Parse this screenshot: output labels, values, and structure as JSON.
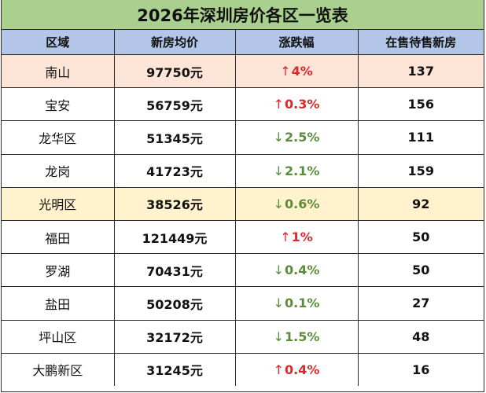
{
  "title": "2026年深圳房价各区一览表",
  "colors": {
    "title_bg": "#a9d08e",
    "header_bg": "#b4c6e7",
    "highlight_peach": "#fce4d6",
    "highlight_yellow": "#fff2cc",
    "up": "#e0262b",
    "down": "#5b8c3a"
  },
  "columns": [
    "区域",
    "新房均价",
    "涨跌幅",
    "在售待售新房"
  ],
  "rows": [
    {
      "district": "南山",
      "price": "97750元",
      "direction": "up",
      "arrow": "↑",
      "change": "4%",
      "count": "137",
      "highlight": "peach"
    },
    {
      "district": "宝安",
      "price": "56759元",
      "direction": "up",
      "arrow": "↑",
      "change": "0.3%",
      "count": "156",
      "highlight": ""
    },
    {
      "district": "龙华区",
      "price": "51345元",
      "direction": "down",
      "arrow": "↓",
      "change": "2.5%",
      "count": "111",
      "highlight": ""
    },
    {
      "district": "龙岗",
      "price": "41723元",
      "direction": "down",
      "arrow": "↓",
      "change": "2.1%",
      "count": "159",
      "highlight": ""
    },
    {
      "district": "光明区",
      "price": "38526元",
      "direction": "down",
      "arrow": "↓",
      "change": "0.6%",
      "count": "92",
      "highlight": "yellow"
    },
    {
      "district": "福田",
      "price": "121449元",
      "direction": "up",
      "arrow": "↑",
      "change": "1%",
      "count": "50",
      "highlight": ""
    },
    {
      "district": "罗湖",
      "price": "70431元",
      "direction": "down",
      "arrow": "↓",
      "change": "0.4%",
      "count": "50",
      "highlight": ""
    },
    {
      "district": "盐田",
      "price": "50208元",
      "direction": "down",
      "arrow": "↓",
      "change": "0.1%",
      "count": "27",
      "highlight": ""
    },
    {
      "district": "坪山区",
      "price": "32172元",
      "direction": "down",
      "arrow": "↓",
      "change": "1.5%",
      "count": "48",
      "highlight": ""
    },
    {
      "district": "大鹏新区",
      "price": "31245元",
      "direction": "up",
      "arrow": "↑",
      "change": "0.4%",
      "count": "16",
      "highlight": ""
    }
  ]
}
